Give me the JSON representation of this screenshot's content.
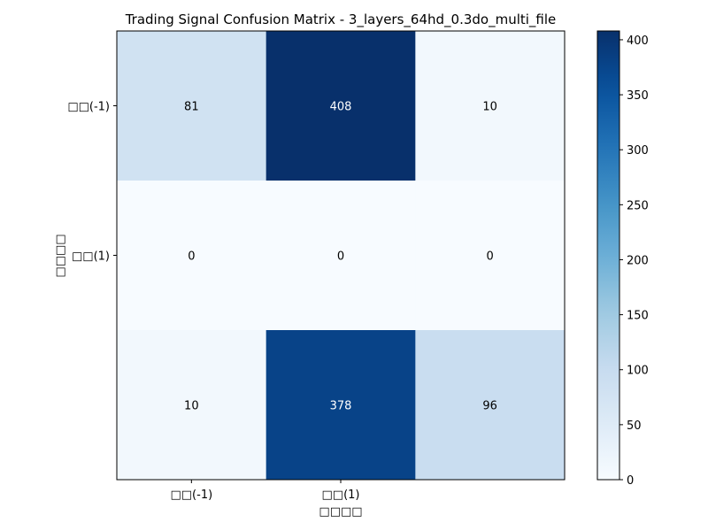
{
  "chart_data": {
    "type": "heatmap",
    "title": "Trading Signal Confusion Matrix - 3_layers_64hd_0.3do_multi_file",
    "xlabel": "□□□□",
    "ylabel": "□□□□",
    "x_tick_labels": [
      "□□(-1)",
      "□□(1)",
      ""
    ],
    "y_tick_labels": [
      "□□(-1)",
      "□□(1)",
      ""
    ],
    "matrix": [
      [
        81,
        408,
        10
      ],
      [
        0,
        0,
        0
      ],
      [
        10,
        378,
        96
      ]
    ],
    "colormap": "Blues",
    "colorbar": {
      "min": 0,
      "max": 408,
      "ticks": [
        0,
        50,
        100,
        150,
        200,
        250,
        300,
        350,
        400
      ]
    },
    "colors": {
      "axis": "#000000",
      "text_dark_bg": "#ffffff",
      "text_light_bg": "#000000"
    }
  }
}
